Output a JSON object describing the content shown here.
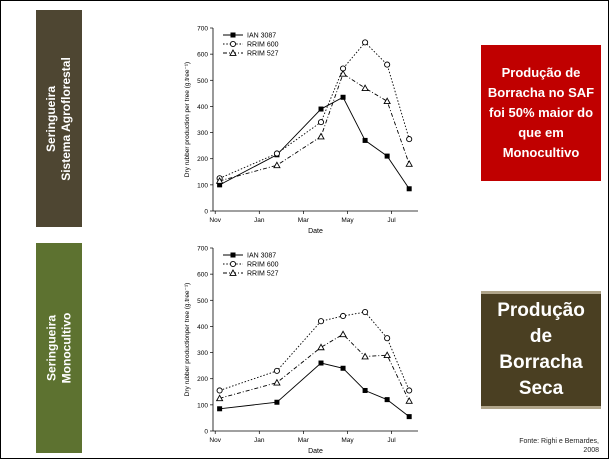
{
  "sidebar_top": {
    "line1": "Seringueira",
    "line2": "Sistema Agroflorestal"
  },
  "sidebar_bottom": {
    "line1": "Seringueira",
    "line2": "Monocultivo"
  },
  "callout_red": {
    "text": "Produção de Borracha no SAF foi 50% maior do que em Monocultivo",
    "color": "#c00000"
  },
  "callout_brown": {
    "text": "Produção de Borracha Seca",
    "color": "#4a3f22"
  },
  "source": {
    "text": "Fonte: Righi e Bernardes, 2008"
  },
  "chart_data": [
    {
      "type": "line",
      "xlabel": "Date",
      "ylabel": "Dry rubber production per tree (g.tree⁻¹)",
      "categories": [
        "Nov",
        "Jan",
        "Mar",
        "May",
        "Jul"
      ],
      "ylim": [
        0,
        700
      ],
      "yticks": [
        0,
        100,
        200,
        300,
        400,
        500,
        600,
        700
      ],
      "legend_position": "top-left",
      "series": [
        {
          "name": "IAN 3087",
          "marker": "square-filled",
          "dash": "solid",
          "x": [
            0.1,
            1.4,
            2.4,
            2.9,
            3.4,
            3.9,
            4.4
          ],
          "values": [
            100,
            215,
            390,
            435,
            270,
            210,
            85
          ]
        },
        {
          "name": "RRIM 600",
          "marker": "circle-open",
          "dash": "dot",
          "x": [
            0.1,
            1.4,
            2.4,
            2.9,
            3.4,
            3.9,
            4.4
          ],
          "values": [
            125,
            220,
            340,
            545,
            645,
            560,
            275
          ]
        },
        {
          "name": "RRIM 527",
          "marker": "triangle-open",
          "dash": "dashdot",
          "x": [
            0.1,
            1.4,
            2.4,
            2.9,
            3.4,
            3.9,
            4.4
          ],
          "values": [
            115,
            175,
            285,
            525,
            470,
            420,
            180
          ]
        }
      ]
    },
    {
      "type": "line",
      "xlabel": "Date",
      "ylabel": "Dry rubber productionper tree (g.tree⁻¹)",
      "categories": [
        "Nov",
        "Jan",
        "Mar",
        "May",
        "Jul"
      ],
      "ylim": [
        0,
        700
      ],
      "yticks": [
        0,
        100,
        200,
        300,
        400,
        500,
        600,
        700
      ],
      "legend_position": "top-left",
      "series": [
        {
          "name": "IAN 3087",
          "marker": "square-filled",
          "dash": "solid",
          "x": [
            0.1,
            1.4,
            2.4,
            2.9,
            3.4,
            3.9,
            4.4
          ],
          "values": [
            85,
            110,
            260,
            240,
            155,
            120,
            55
          ]
        },
        {
          "name": "RRIM 600",
          "marker": "circle-open",
          "dash": "dot",
          "x": [
            0.1,
            1.4,
            2.4,
            2.9,
            3.4,
            3.9,
            4.4
          ],
          "values": [
            155,
            230,
            420,
            440,
            455,
            355,
            155
          ]
        },
        {
          "name": "RRIM 527",
          "marker": "triangle-open",
          "dash": "dashdot",
          "x": [
            0.1,
            1.4,
            2.4,
            2.9,
            3.4,
            3.9,
            4.4
          ],
          "values": [
            125,
            185,
            320,
            370,
            285,
            290,
            115
          ]
        }
      ]
    }
  ]
}
